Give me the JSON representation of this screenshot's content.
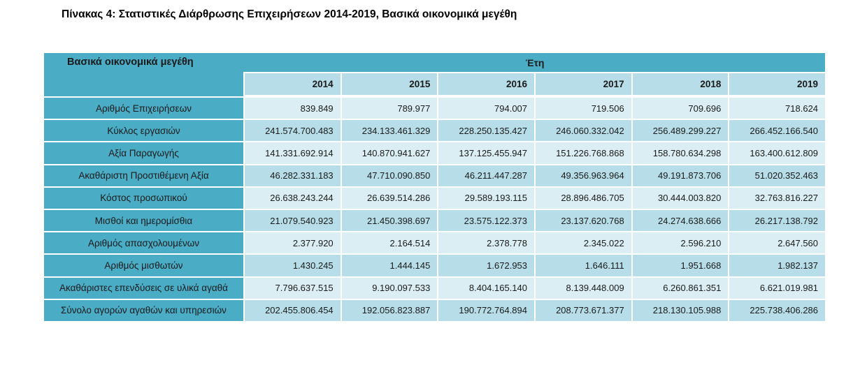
{
  "title": "Πίνακας 4: Στατιστικές Διάρθρωσης Επιχειρήσεων 2014-2019, Βασικά οικονομικά μεγέθη",
  "table": {
    "corner_header": "Βασικά οικονομικά μεγέθη",
    "years_group_header": "Έτη",
    "years": [
      "2014",
      "2015",
      "2016",
      "2017",
      "2018",
      "2019"
    ],
    "rows": [
      {
        "label": "Αριθμός Επιχειρήσεων",
        "values": [
          "839.849",
          "789.977",
          "794.007",
          "719.506",
          "709.696",
          "718.624"
        ]
      },
      {
        "label": "Κύκλος εργασιών",
        "values": [
          "241.574.700.483",
          "234.133.461.329",
          "228.250.135.427",
          "246.060.332.042",
          "256.489.299.227",
          "266.452.166.540"
        ]
      },
      {
        "label": "Αξία Παραγωγής",
        "values": [
          "141.331.692.914",
          "140.870.941.627",
          "137.125.455.947",
          "151.226.768.868",
          "158.780.634.298",
          "163.400.612.809"
        ]
      },
      {
        "label": "Ακαθάριστη Προστιθέμενη Αξία",
        "values": [
          "46.282.331.183",
          "47.710.090.850",
          "46.211.447.287",
          "49.356.963.964",
          "49.191.873.706",
          "51.020.352.463"
        ]
      },
      {
        "label": "Κόστος προσωπικού",
        "values": [
          "26.638.243.244",
          "26.639.514.286",
          "29.589.193.115",
          "28.896.486.705",
          "30.444.003.820",
          "32.763.816.227"
        ]
      },
      {
        "label": "Μισθοί και ημερομίσθια",
        "values": [
          "21.079.540.923",
          "21.450.398.697",
          "23.575.122.373",
          "23.137.620.768",
          "24.274.638.666",
          "26.217.138.792"
        ]
      },
      {
        "label": "Αριθμός απασχολουμένων",
        "values": [
          "2.377.920",
          "2.164.514",
          "2.378.778",
          "2.345.022",
          "2.596.210",
          "2.647.560"
        ]
      },
      {
        "label": "Αριθμός μισθωτών",
        "values": [
          "1.430.245",
          "1.444.145",
          "1.672.953",
          "1.646.111",
          "1.951.668",
          "1.982.137"
        ]
      },
      {
        "label": "Ακαθάριστες επενδύσεις σε υλικά αγαθά",
        "values": [
          "7.796.637.515",
          "9.190.097.533",
          "8.404.165.140",
          "8.139.448.009",
          "6.260.861.351",
          "6.621.019.981"
        ]
      },
      {
        "label": "Σύνολο αγορών αγαθών και υπηρεσιών",
        "values": [
          "202.455.806.454",
          "192.056.823.887",
          "190.772.764.894",
          "208.773.671.377",
          "218.130.105.988",
          "225.738.406.286"
        ]
      }
    ]
  },
  "colors": {
    "teal": "#4BACC6",
    "year_header": "#B7DEE8",
    "row_light": "#DAEEF3",
    "row_dark": "#B7DEE8",
    "text": "#1a1a1a",
    "title": "#000000",
    "background": "#ffffff"
  }
}
